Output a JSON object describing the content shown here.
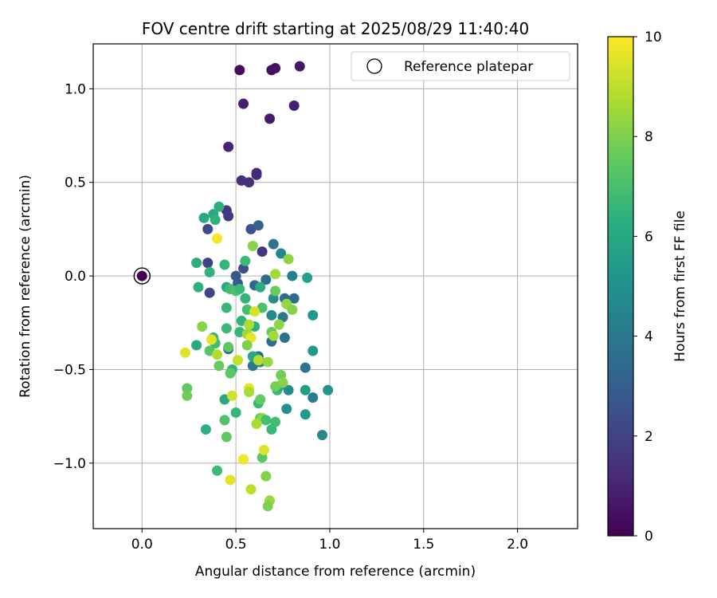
{
  "chart_data": {
    "type": "scatter",
    "title": "FOV centre drift starting at 2025/08/29 11:40:40",
    "xlabel": "Angular distance from reference (arcmin)",
    "ylabel": "Rotation from reference (arcmin)",
    "xlim": [
      -0.26,
      2.32
    ],
    "ylim": [
      -1.35,
      1.24
    ],
    "xticks": [
      0.0,
      0.5,
      1.0,
      1.5,
      2.0
    ],
    "xtick_labels": [
      "0.0",
      "0.5",
      "1.0",
      "1.5",
      "2.0"
    ],
    "yticks": [
      -1.0,
      -0.5,
      0.0,
      0.5,
      1.0
    ],
    "ytick_labels": [
      "−1.0",
      "−0.5",
      "0.0",
      "0.5",
      "1.0"
    ],
    "grid": true,
    "legend": {
      "position": "top-right",
      "entries": [
        "Reference platepar"
      ]
    },
    "colorbar": {
      "label": "Hours from first FF file",
      "range": [
        0,
        10
      ],
      "ticks": [
        0,
        2,
        4,
        6,
        8,
        10
      ],
      "tick_labels": [
        "0",
        "2",
        "4",
        "6",
        "8",
        "10"
      ],
      "colormap": "viridis"
    },
    "reference_point": {
      "x": 0.0,
      "y": 0.0,
      "hours": 0
    },
    "points": [
      {
        "x": 0.52,
        "y": 1.1,
        "h": 0.3
      },
      {
        "x": 0.69,
        "y": 1.1,
        "h": 0.4
      },
      {
        "x": 0.71,
        "y": 1.11,
        "h": 0.5
      },
      {
        "x": 0.84,
        "y": 1.12,
        "h": 0.6
      },
      {
        "x": 0.54,
        "y": 0.92,
        "h": 0.8
      },
      {
        "x": 0.81,
        "y": 0.91,
        "h": 0.9
      },
      {
        "x": 0.68,
        "y": 0.84,
        "h": 0.7
      },
      {
        "x": 0.46,
        "y": 0.69,
        "h": 1.0
      },
      {
        "x": 0.61,
        "y": 0.55,
        "h": 1.1
      },
      {
        "x": 0.61,
        "y": 0.54,
        "h": 1.2
      },
      {
        "x": 0.53,
        "y": 0.51,
        "h": 1.3
      },
      {
        "x": 0.57,
        "y": 0.5,
        "h": 1.4
      },
      {
        "x": 0.45,
        "y": 0.35,
        "h": 1.5
      },
      {
        "x": 0.46,
        "y": 0.32,
        "h": 1.6
      },
      {
        "x": 0.35,
        "y": 0.25,
        "h": 2.3
      },
      {
        "x": 0.58,
        "y": 0.25,
        "h": 2.6
      },
      {
        "x": 0.62,
        "y": 0.27,
        "h": 3.1
      },
      {
        "x": 0.64,
        "y": 0.13,
        "h": 1.5
      },
      {
        "x": 0.35,
        "y": 0.07,
        "h": 1.9
      },
      {
        "x": 0.54,
        "y": 0.04,
        "h": 2.4
      },
      {
        "x": 0.5,
        "y": 0.0,
        "h": 2.7
      },
      {
        "x": 0.51,
        "y": -0.04,
        "h": 2.9
      },
      {
        "x": 0.36,
        "y": -0.09,
        "h": 2.1
      },
      {
        "x": 0.6,
        "y": -0.05,
        "h": 3.2
      },
      {
        "x": 0.66,
        "y": -0.02,
        "h": 3.6
      },
      {
        "x": 0.7,
        "y": 0.17,
        "h": 3.8
      },
      {
        "x": 0.74,
        "y": 0.12,
        "h": 4.6
      },
      {
        "x": 0.76,
        "y": -0.12,
        "h": 3.4
      },
      {
        "x": 0.81,
        "y": -0.12,
        "h": 3.5
      },
      {
        "x": 0.8,
        "y": 0.0,
        "h": 4.4
      },
      {
        "x": 0.87,
        "y": -0.49,
        "h": 3.9
      },
      {
        "x": 0.76,
        "y": -0.33,
        "h": 3.7
      },
      {
        "x": 0.69,
        "y": -0.35,
        "h": 3.6
      },
      {
        "x": 0.62,
        "y": -0.43,
        "h": 3.3
      },
      {
        "x": 0.46,
        "y": -0.39,
        "h": 2.8
      },
      {
        "x": 0.59,
        "y": -0.48,
        "h": 4.1
      },
      {
        "x": 0.75,
        "y": -0.22,
        "h": 4.2
      },
      {
        "x": 0.69,
        "y": -0.21,
        "h": 4.8
      },
      {
        "x": 0.7,
        "y": -0.12,
        "h": 5.0
      },
      {
        "x": 0.63,
        "y": -0.46,
        "h": 4.5
      },
      {
        "x": 0.96,
        "y": -0.85,
        "h": 4.7
      },
      {
        "x": 0.91,
        "y": -0.65,
        "h": 4.3
      },
      {
        "x": 0.77,
        "y": -0.71,
        "h": 5.1
      },
      {
        "x": 0.78,
        "y": -0.61,
        "h": 4.9
      },
      {
        "x": 0.99,
        "y": -0.61,
        "h": 5.2
      },
      {
        "x": 0.87,
        "y": -0.74,
        "h": 5.4
      },
      {
        "x": 0.87,
        "y": -0.61,
        "h": 5.6
      },
      {
        "x": 0.91,
        "y": -0.4,
        "h": 5.5
      },
      {
        "x": 0.91,
        "y": -0.21,
        "h": 5.3
      },
      {
        "x": 0.88,
        "y": -0.01,
        "h": 5.7
      },
      {
        "x": 0.38,
        "y": 0.33,
        "h": 6.1
      },
      {
        "x": 0.41,
        "y": 0.37,
        "h": 6.3
      },
      {
        "x": 0.33,
        "y": 0.31,
        "h": 6.0
      },
      {
        "x": 0.39,
        "y": 0.3,
        "h": 6.4
      },
      {
        "x": 0.29,
        "y": 0.07,
        "h": 6.2
      },
      {
        "x": 0.36,
        "y": 0.02,
        "h": 6.5
      },
      {
        "x": 0.44,
        "y": 0.06,
        "h": 6.6
      },
      {
        "x": 0.55,
        "y": 0.08,
        "h": 6.8
      },
      {
        "x": 0.3,
        "y": -0.06,
        "h": 6.3
      },
      {
        "x": 0.45,
        "y": -0.06,
        "h": 6.1
      },
      {
        "x": 0.47,
        "y": -0.07,
        "h": 6.9
      },
      {
        "x": 0.5,
        "y": -0.08,
        "h": 7.2
      },
      {
        "x": 0.52,
        "y": -0.07,
        "h": 6.7
      },
      {
        "x": 0.63,
        "y": -0.06,
        "h": 6.2
      },
      {
        "x": 0.55,
        "y": -0.12,
        "h": 6.5
      },
      {
        "x": 0.45,
        "y": -0.17,
        "h": 6.7
      },
      {
        "x": 0.56,
        "y": -0.18,
        "h": 7.0
      },
      {
        "x": 0.64,
        "y": -0.17,
        "h": 7.1
      },
      {
        "x": 0.53,
        "y": -0.24,
        "h": 6.5
      },
      {
        "x": 0.45,
        "y": -0.28,
        "h": 6.8
      },
      {
        "x": 0.52,
        "y": -0.3,
        "h": 6.6
      },
      {
        "x": 0.6,
        "y": -0.27,
        "h": 6.3
      },
      {
        "x": 0.38,
        "y": -0.33,
        "h": 6.4
      },
      {
        "x": 0.39,
        "y": -0.36,
        "h": 6.9
      },
      {
        "x": 0.36,
        "y": -0.4,
        "h": 7.3
      },
      {
        "x": 0.29,
        "y": -0.37,
        "h": 6.0
      },
      {
        "x": 0.46,
        "y": -0.38,
        "h": 7.5
      },
      {
        "x": 0.61,
        "y": -0.44,
        "h": 6.1
      },
      {
        "x": 0.41,
        "y": -0.48,
        "h": 7.6
      },
      {
        "x": 0.48,
        "y": -0.5,
        "h": 6.4
      },
      {
        "x": 0.47,
        "y": -0.52,
        "h": 7.4
      },
      {
        "x": 0.59,
        "y": -0.43,
        "h": 5.9
      },
      {
        "x": 0.72,
        "y": -0.61,
        "h": 6.7
      },
      {
        "x": 0.73,
        "y": -0.59,
        "h": 6.1
      },
      {
        "x": 0.74,
        "y": -0.53,
        "h": 7.8
      },
      {
        "x": 0.75,
        "y": -0.57,
        "h": 8.2
      },
      {
        "x": 0.71,
        "y": -0.59,
        "h": 7.9
      },
      {
        "x": 0.44,
        "y": -0.66,
        "h": 6.1
      },
      {
        "x": 0.5,
        "y": -0.73,
        "h": 6.6
      },
      {
        "x": 0.34,
        "y": -0.82,
        "h": 6.3
      },
      {
        "x": 0.44,
        "y": -0.77,
        "h": 7.2
      },
      {
        "x": 0.45,
        "y": -0.86,
        "h": 7.5
      },
      {
        "x": 0.4,
        "y": -1.04,
        "h": 6.8
      },
      {
        "x": 0.62,
        "y": -0.68,
        "h": 6.7
      },
      {
        "x": 0.63,
        "y": -0.66,
        "h": 7.6
      },
      {
        "x": 0.63,
        "y": -0.76,
        "h": 7.3
      },
      {
        "x": 0.64,
        "y": -0.76,
        "h": 8.3
      },
      {
        "x": 0.66,
        "y": -0.77,
        "h": 7.0
      },
      {
        "x": 0.69,
        "y": -0.82,
        "h": 6.7
      },
      {
        "x": 0.71,
        "y": -0.78,
        "h": 6.9
      },
      {
        "x": 0.61,
        "y": -0.79,
        "h": 8.7
      },
      {
        "x": 0.64,
        "y": -0.97,
        "h": 7.4
      },
      {
        "x": 0.66,
        "y": -1.07,
        "h": 8.1
      },
      {
        "x": 0.68,
        "y": -1.2,
        "h": 8.5
      },
      {
        "x": 0.67,
        "y": -1.23,
        "h": 8.0
      },
      {
        "x": 0.24,
        "y": -0.6,
        "h": 7.5
      },
      {
        "x": 0.24,
        "y": -0.64,
        "h": 7.8
      },
      {
        "x": 0.32,
        "y": -0.27,
        "h": 8.2
      },
      {
        "x": 0.4,
        "y": -0.42,
        "h": 8.8
      },
      {
        "x": 0.37,
        "y": -0.34,
        "h": 9.6
      },
      {
        "x": 0.23,
        "y": -0.41,
        "h": 9.5
      },
      {
        "x": 0.4,
        "y": 0.2,
        "h": 9.9
      },
      {
        "x": 0.59,
        "y": 0.16,
        "h": 8.2
      },
      {
        "x": 0.71,
        "y": 0.01,
        "h": 8.6
      },
      {
        "x": 0.78,
        "y": 0.09,
        "h": 8.3
      },
      {
        "x": 0.71,
        "y": -0.08,
        "h": 7.7
      },
      {
        "x": 0.77,
        "y": -0.15,
        "h": 8.4
      },
      {
        "x": 0.8,
        "y": -0.18,
        "h": 8.1
      },
      {
        "x": 0.6,
        "y": -0.19,
        "h": 9.4
      },
      {
        "x": 0.57,
        "y": -0.26,
        "h": 8.8
      },
      {
        "x": 0.56,
        "y": -0.31,
        "h": 8.5
      },
      {
        "x": 0.58,
        "y": -0.33,
        "h": 9.7
      },
      {
        "x": 0.56,
        "y": -0.37,
        "h": 8.0
      },
      {
        "x": 0.69,
        "y": -0.3,
        "h": 7.6
      },
      {
        "x": 0.7,
        "y": -0.32,
        "h": 8.6
      },
      {
        "x": 0.73,
        "y": -0.26,
        "h": 8.3
      },
      {
        "x": 0.51,
        "y": -0.45,
        "h": 9.1
      },
      {
        "x": 0.62,
        "y": -0.45,
        "h": 8.9
      },
      {
        "x": 0.67,
        "y": -0.46,
        "h": 8.4
      },
      {
        "x": 0.48,
        "y": -0.64,
        "h": 9.3
      },
      {
        "x": 0.57,
        "y": -0.6,
        "h": 9.6
      },
      {
        "x": 0.57,
        "y": -0.62,
        "h": 8.7
      },
      {
        "x": 0.47,
        "y": -1.09,
        "h": 9.6
      },
      {
        "x": 0.54,
        "y": -0.98,
        "h": 9.8
      },
      {
        "x": 0.58,
        "y": -1.14,
        "h": 9.0
      },
      {
        "x": 0.65,
        "y": -0.93,
        "h": 9.5
      }
    ]
  }
}
